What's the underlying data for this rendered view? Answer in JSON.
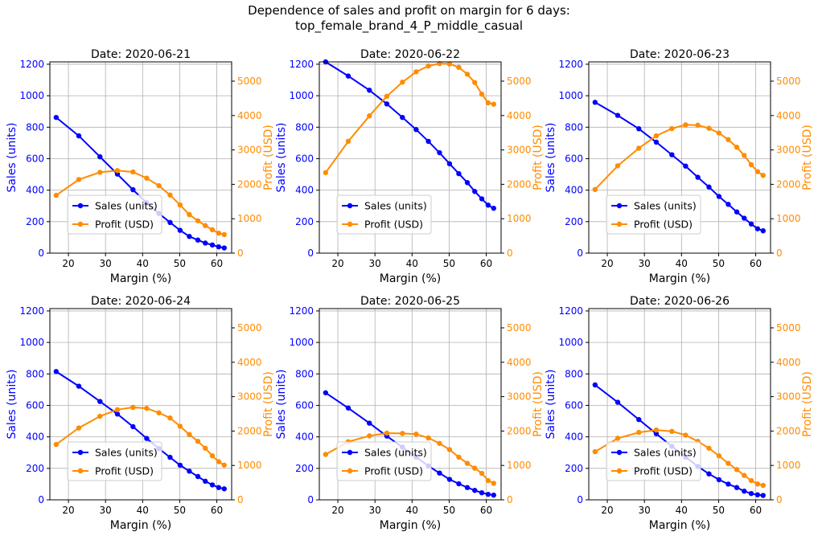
{
  "figure": {
    "title_line1": "Dependence of sales and profit on margin for 6 days:",
    "title_line2": "top_female_brand_4_P_middle_casual"
  },
  "colors": {
    "sales": "#0000ff",
    "profit": "#ff8c00",
    "grid": "#b0b0b0",
    "axis": "#000000"
  },
  "chart_data": [
    {
      "type": "line",
      "title": "Date: 2020-06-21",
      "xlabel": "Margin (%)",
      "ylabel": "Sales (units)",
      "y2label": "Profit (USD)",
      "x": [
        16.7,
        22.8,
        28.5,
        33.2,
        37.4,
        41.1,
        44.4,
        47.4,
        50.1,
        52.6,
        54.9,
        56.9,
        58.8,
        60.5,
        62.0
      ],
      "series": [
        {
          "name": "Sales (units)",
          "axis": "left",
          "values": [
            862,
            745,
            612,
            502,
            403,
            320,
            252,
            195,
            145,
            106,
            83,
            64,
            52,
            40,
            33
          ]
        },
        {
          "name": "Profit (USD)",
          "axis": "right",
          "values": [
            1680,
            2140,
            2350,
            2400,
            2360,
            2180,
            1960,
            1690,
            1400,
            1120,
            940,
            800,
            680,
            580,
            540
          ]
        }
      ],
      "xlim": [
        15,
        64
      ],
      "ylim": [
        0,
        1215
      ],
      "y2lim": [
        0,
        5560
      ],
      "xticks": [
        20,
        30,
        40,
        50,
        60
      ],
      "yticks": [
        0,
        200,
        400,
        600,
        800,
        1000,
        1200
      ],
      "y2ticks": [
        0,
        1000,
        2000,
        3000,
        4000,
        5000
      ],
      "grid": true,
      "legend": "lower-left"
    },
    {
      "type": "line",
      "title": "Date: 2020-06-22",
      "xlabel": "Margin (%)",
      "ylabel": "Sales (units)",
      "y2label": "Profit (USD)",
      "x": [
        16.7,
        22.8,
        28.5,
        33.2,
        37.4,
        41.1,
        44.4,
        47.4,
        50.1,
        52.6,
        54.9,
        56.9,
        58.8,
        60.5,
        62.0
      ],
      "series": [
        {
          "name": "Sales (units)",
          "axis": "left",
          "values": [
            1215,
            1125,
            1035,
            948,
            862,
            785,
            710,
            638,
            568,
            505,
            448,
            392,
            345,
            305,
            285
          ]
        },
        {
          "name": "Profit (USD)",
          "axis": "right",
          "values": [
            2340,
            3250,
            3990,
            4560,
            4970,
            5270,
            5440,
            5510,
            5500,
            5400,
            5200,
            4960,
            4620,
            4370,
            4330
          ]
        }
      ],
      "xlim": [
        15,
        64
      ],
      "ylim": [
        0,
        1215
      ],
      "y2lim": [
        0,
        5560
      ],
      "xticks": [
        20,
        30,
        40,
        50,
        60
      ],
      "yticks": [
        0,
        200,
        400,
        600,
        800,
        1000,
        1200
      ],
      "y2ticks": [
        0,
        1000,
        2000,
        3000,
        4000,
        5000
      ],
      "grid": true,
      "legend": "lower-left"
    },
    {
      "type": "line",
      "title": "Date: 2020-06-23",
      "xlabel": "Margin (%)",
      "ylabel": "Sales (units)",
      "y2label": "Profit (USD)",
      "x": [
        16.7,
        22.8,
        28.5,
        33.2,
        37.4,
        41.1,
        44.4,
        47.4,
        50.1,
        52.6,
        54.9,
        56.9,
        58.8,
        60.5,
        62.0
      ],
      "series": [
        {
          "name": "Sales (units)",
          "axis": "left",
          "values": [
            958,
            875,
            790,
            705,
            625,
            553,
            482,
            420,
            360,
            310,
            262,
            222,
            185,
            155,
            142
          ]
        },
        {
          "name": "Profit (USD)",
          "axis": "right",
          "values": [
            1850,
            2540,
            3050,
            3410,
            3620,
            3730,
            3720,
            3630,
            3490,
            3300,
            3080,
            2840,
            2570,
            2370,
            2260
          ]
        }
      ],
      "xlim": [
        15,
        64
      ],
      "ylim": [
        0,
        1215
      ],
      "y2lim": [
        0,
        5560
      ],
      "xticks": [
        20,
        30,
        40,
        50,
        60
      ],
      "yticks": [
        0,
        200,
        400,
        600,
        800,
        1000,
        1200
      ],
      "y2ticks": [
        0,
        1000,
        2000,
        3000,
        4000,
        5000
      ],
      "grid": true,
      "legend": "lower-left"
    },
    {
      "type": "line",
      "title": "Date: 2020-06-24",
      "xlabel": "Margin (%)",
      "ylabel": "Sales (units)",
      "y2label": "Profit (USD)",
      "x": [
        16.7,
        22.8,
        28.5,
        33.2,
        37.4,
        41.1,
        44.4,
        47.4,
        50.1,
        52.6,
        54.9,
        56.9,
        58.8,
        60.5,
        62.0
      ],
      "series": [
        {
          "name": "Sales (units)",
          "axis": "left",
          "values": [
            815,
            722,
            625,
            545,
            465,
            390,
            325,
            270,
            220,
            182,
            148,
            118,
            95,
            78,
            70
          ]
        },
        {
          "name": "Profit (USD)",
          "axis": "right",
          "values": [
            1610,
            2090,
            2430,
            2620,
            2690,
            2660,
            2530,
            2380,
            2140,
            1900,
            1700,
            1500,
            1280,
            1110,
            1010
          ]
        }
      ],
      "xlim": [
        15,
        64
      ],
      "ylim": [
        0,
        1215
      ],
      "y2lim": [
        0,
        5560
      ],
      "xticks": [
        20,
        30,
        40,
        50,
        60
      ],
      "yticks": [
        0,
        200,
        400,
        600,
        800,
        1000,
        1200
      ],
      "y2ticks": [
        0,
        1000,
        2000,
        3000,
        4000,
        5000
      ],
      "grid": true,
      "legend": "lower-left"
    },
    {
      "type": "line",
      "title": "Date: 2020-06-25",
      "xlabel": "Margin (%)",
      "ylabel": "Sales (units)",
      "y2label": "Profit (USD)",
      "x": [
        16.7,
        22.8,
        28.5,
        33.2,
        37.4,
        41.1,
        44.4,
        47.4,
        50.1,
        52.6,
        54.9,
        56.9,
        58.8,
        60.5,
        62.0
      ],
      "series": [
        {
          "name": "Sales (units)",
          "axis": "left",
          "values": [
            680,
            583,
            487,
            405,
            335,
            272,
            215,
            170,
            130,
            102,
            78,
            60,
            45,
            35,
            30
          ]
        },
        {
          "name": "Profit (USD)",
          "axis": "right",
          "values": [
            1320,
            1690,
            1860,
            1940,
            1930,
            1910,
            1800,
            1640,
            1460,
            1240,
            1060,
            920,
            770,
            560,
            480
          ]
        }
      ],
      "xlim": [
        15,
        64
      ],
      "ylim": [
        0,
        1215
      ],
      "y2lim": [
        0,
        5560
      ],
      "xticks": [
        20,
        30,
        40,
        50,
        60
      ],
      "yticks": [
        0,
        200,
        400,
        600,
        800,
        1000,
        1200
      ],
      "y2ticks": [
        0,
        1000,
        2000,
        3000,
        4000,
        5000
      ],
      "grid": true,
      "legend": "lower-left"
    },
    {
      "type": "line",
      "title": "Date: 2020-06-26",
      "xlabel": "Margin (%)",
      "ylabel": "Sales (units)",
      "y2label": "Profit (USD)",
      "x": [
        16.7,
        22.8,
        28.5,
        33.2,
        37.4,
        41.1,
        44.4,
        47.4,
        50.1,
        52.6,
        54.9,
        56.9,
        58.8,
        60.5,
        62.0
      ],
      "series": [
        {
          "name": "Sales (units)",
          "axis": "left",
          "values": [
            730,
            620,
            510,
            420,
            340,
            272,
            212,
            165,
            128,
            100,
            78,
            55,
            40,
            32,
            28
          ]
        },
        {
          "name": "Profit (USD)",
          "axis": "right",
          "values": [
            1400,
            1790,
            1960,
            2030,
            1990,
            1880,
            1700,
            1500,
            1280,
            1060,
            880,
            710,
            560,
            460,
            420
          ]
        }
      ],
      "xlim": [
        15,
        64
      ],
      "ylim": [
        0,
        1215
      ],
      "y2lim": [
        0,
        5560
      ],
      "xticks": [
        20,
        30,
        40,
        50,
        60
      ],
      "yticks": [
        0,
        200,
        400,
        600,
        800,
        1000,
        1200
      ],
      "y2ticks": [
        0,
        1000,
        2000,
        3000,
        4000,
        5000
      ],
      "grid": true,
      "legend": "lower-left"
    }
  ]
}
